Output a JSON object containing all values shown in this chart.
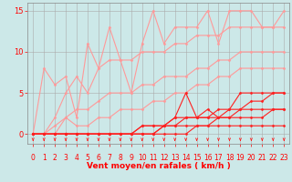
{
  "xlabel": "Vent moyen/en rafales ( km/h )",
  "xlim": [
    -0.5,
    23.5
  ],
  "ylim": [
    -1.2,
    16
  ],
  "yticks": [
    0,
    5,
    10,
    15
  ],
  "xticks": [
    0,
    1,
    2,
    3,
    4,
    5,
    6,
    7,
    8,
    9,
    10,
    11,
    12,
    13,
    14,
    15,
    16,
    17,
    18,
    19,
    20,
    21,
    22,
    23
  ],
  "bg_color": "#cce8e8",
  "grid_color": "#aaaaaa",
  "pink_color": "#ff9999",
  "red_color": "#ff2020",
  "lw_pink": 0.8,
  "lw_red": 0.8,
  "marker_size": 1.5,
  "series_pink": [
    {
      "x": [
        0,
        1,
        2,
        3,
        4,
        5,
        6,
        7,
        8,
        9,
        10,
        11,
        12,
        13,
        14,
        15,
        16,
        17,
        18,
        19,
        20,
        21,
        22,
        23
      ],
      "y": [
        0,
        8,
        6,
        7,
        2,
        11,
        8,
        13,
        9,
        5,
        11,
        15,
        11,
        13,
        13,
        13,
        15,
        11,
        15,
        15,
        15,
        13,
        13,
        15
      ]
    },
    {
      "x": [
        0,
        1,
        2,
        3,
        4,
        5,
        6,
        7,
        8,
        9,
        10,
        11,
        12,
        13,
        14,
        15,
        16,
        17,
        18,
        19,
        20,
        21,
        22,
        23
      ],
      "y": [
        0,
        0,
        2,
        5,
        7,
        5,
        8,
        9,
        9,
        9,
        10,
        10,
        10,
        11,
        11,
        12,
        12,
        12,
        13,
        13,
        13,
        13,
        13,
        13
      ]
    },
    {
      "x": [
        0,
        1,
        2,
        3,
        4,
        5,
        6,
        7,
        8,
        9,
        10,
        11,
        12,
        13,
        14,
        15,
        16,
        17,
        18,
        19,
        20,
        21,
        22,
        23
      ],
      "y": [
        0,
        0,
        0,
        2,
        3,
        3,
        4,
        5,
        5,
        5,
        6,
        6,
        7,
        7,
        7,
        8,
        8,
        9,
        9,
        10,
        10,
        10,
        10,
        10
      ]
    },
    {
      "x": [
        0,
        1,
        2,
        3,
        4,
        5,
        6,
        7,
        8,
        9,
        10,
        11,
        12,
        13,
        14,
        15,
        16,
        17,
        18,
        19,
        20,
        21,
        22,
        23
      ],
      "y": [
        0,
        0,
        1,
        2,
        1,
        1,
        2,
        2,
        3,
        3,
        3,
        4,
        4,
        5,
        5,
        6,
        6,
        7,
        7,
        8,
        8,
        8,
        8,
        8
      ]
    }
  ],
  "series_red": [
    {
      "x": [
        0,
        1,
        2,
        3,
        4,
        5,
        6,
        7,
        8,
        9,
        10,
        11,
        12,
        13,
        14,
        15,
        16,
        17,
        18,
        19,
        20,
        21,
        22,
        23
      ],
      "y": [
        0,
        0,
        0,
        0,
        0,
        0,
        0,
        0,
        0,
        0,
        0,
        0,
        1,
        2,
        5,
        2,
        3,
        2,
        3,
        5,
        5,
        5,
        5,
        5
      ]
    },
    {
      "x": [
        0,
        1,
        2,
        3,
        4,
        5,
        6,
        7,
        8,
        9,
        10,
        11,
        12,
        13,
        14,
        15,
        16,
        17,
        18,
        19,
        20,
        21,
        22,
        23
      ],
      "y": [
        0,
        0,
        0,
        0,
        0,
        0,
        0,
        0,
        0,
        0,
        1,
        1,
        1,
        2,
        2,
        2,
        2,
        3,
        3,
        3,
        4,
        4,
        5,
        5
      ]
    },
    {
      "x": [
        0,
        1,
        2,
        3,
        4,
        5,
        6,
        7,
        8,
        9,
        10,
        11,
        12,
        13,
        14,
        15,
        16,
        17,
        18,
        19,
        20,
        21,
        22,
        23
      ],
      "y": [
        0,
        0,
        0,
        0,
        0,
        0,
        0,
        0,
        0,
        0,
        1,
        1,
        1,
        1,
        2,
        2,
        2,
        2,
        2,
        3,
        3,
        3,
        3,
        3
      ]
    },
    {
      "x": [
        0,
        1,
        2,
        3,
        4,
        5,
        6,
        7,
        8,
        9,
        10,
        11,
        12,
        13,
        14,
        15,
        16,
        17,
        18,
        19,
        20,
        21,
        22,
        23
      ],
      "y": [
        0,
        0,
        0,
        0,
        0,
        0,
        0,
        0,
        0,
        0,
        0,
        0,
        1,
        1,
        1,
        1,
        1,
        2,
        2,
        2,
        2,
        2,
        3,
        3
      ]
    },
    {
      "x": [
        0,
        1,
        2,
        3,
        4,
        5,
        6,
        7,
        8,
        9,
        10,
        11,
        12,
        13,
        14,
        15,
        16,
        17,
        18,
        19,
        20,
        21,
        22,
        23
      ],
      "y": [
        0,
        0,
        0,
        0,
        0,
        0,
        0,
        0,
        0,
        0,
        0,
        0,
        0,
        0,
        0,
        1,
        1,
        1,
        1,
        1,
        1,
        1,
        1,
        1
      ]
    }
  ],
  "font_size_label": 6.5,
  "font_size_tick": 5.5
}
